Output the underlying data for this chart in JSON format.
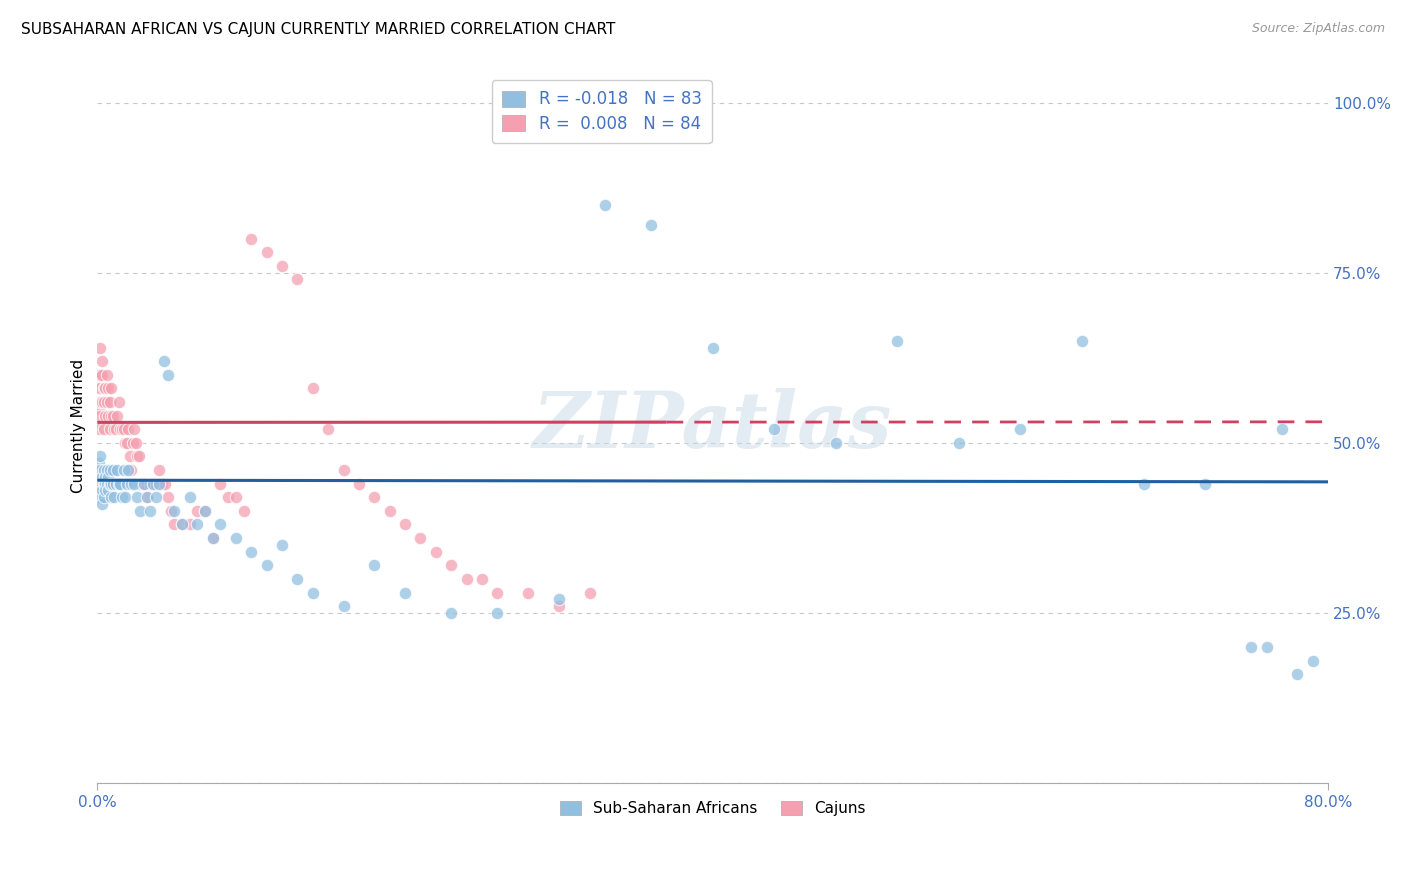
{
  "title": "SUBSAHARAN AFRICAN VS CAJUN CURRENTLY MARRIED CORRELATION CHART",
  "source": "Source: ZipAtlas.com",
  "ylabel": "Currently Married",
  "legend_label1": "Sub-Saharan Africans",
  "legend_label2": "Cajuns",
  "R_blue": -0.018,
  "N_blue": 83,
  "R_pink": 0.008,
  "N_pink": 84,
  "blue_color": "#92bfdf",
  "pink_color": "#f4a0b0",
  "blue_line_color": "#2060a0",
  "pink_line_color": "#d04060",
  "axis_label_color": "#4472c4",
  "watermark": "ZIPatlas",
  "blue_x": [
    0.001,
    0.001,
    0.001,
    0.002,
    0.002,
    0.002,
    0.002,
    0.003,
    0.003,
    0.003,
    0.004,
    0.004,
    0.004,
    0.005,
    0.005,
    0.005,
    0.006,
    0.006,
    0.007,
    0.007,
    0.008,
    0.008,
    0.009,
    0.009,
    0.01,
    0.01,
    0.011,
    0.012,
    0.013,
    0.014,
    0.015,
    0.016,
    0.017,
    0.018,
    0.019,
    0.02,
    0.022,
    0.024,
    0.026,
    0.028,
    0.03,
    0.032,
    0.034,
    0.036,
    0.038,
    0.04,
    0.043,
    0.046,
    0.05,
    0.055,
    0.06,
    0.065,
    0.07,
    0.075,
    0.08,
    0.09,
    0.1,
    0.11,
    0.12,
    0.13,
    0.14,
    0.16,
    0.18,
    0.2,
    0.23,
    0.26,
    0.3,
    0.33,
    0.36,
    0.4,
    0.44,
    0.48,
    0.52,
    0.56,
    0.6,
    0.64,
    0.68,
    0.72,
    0.75,
    0.76,
    0.77,
    0.78,
    0.79
  ],
  "blue_y": [
    0.45,
    0.43,
    0.47,
    0.44,
    0.46,
    0.42,
    0.48,
    0.43,
    0.45,
    0.41,
    0.44,
    0.46,
    0.42,
    0.44,
    0.43,
    0.45,
    0.44,
    0.46,
    0.43,
    0.45,
    0.44,
    0.46,
    0.44,
    0.42,
    0.46,
    0.44,
    0.42,
    0.44,
    0.46,
    0.44,
    0.44,
    0.42,
    0.46,
    0.42,
    0.44,
    0.46,
    0.44,
    0.44,
    0.42,
    0.4,
    0.44,
    0.42,
    0.4,
    0.44,
    0.42,
    0.44,
    0.62,
    0.6,
    0.4,
    0.38,
    0.42,
    0.38,
    0.4,
    0.36,
    0.38,
    0.36,
    0.34,
    0.32,
    0.35,
    0.3,
    0.28,
    0.26,
    0.32,
    0.28,
    0.25,
    0.25,
    0.27,
    0.85,
    0.82,
    0.64,
    0.52,
    0.5,
    0.65,
    0.5,
    0.52,
    0.65,
    0.44,
    0.44,
    0.2,
    0.2,
    0.52,
    0.16,
    0.18
  ],
  "pink_x": [
    0.001,
    0.001,
    0.001,
    0.001,
    0.002,
    0.002,
    0.002,
    0.002,
    0.002,
    0.003,
    0.003,
    0.003,
    0.004,
    0.004,
    0.004,
    0.005,
    0.005,
    0.006,
    0.006,
    0.007,
    0.007,
    0.008,
    0.008,
    0.009,
    0.009,
    0.01,
    0.011,
    0.012,
    0.013,
    0.014,
    0.015,
    0.016,
    0.017,
    0.018,
    0.019,
    0.02,
    0.021,
    0.022,
    0.023,
    0.024,
    0.025,
    0.026,
    0.027,
    0.028,
    0.03,
    0.032,
    0.034,
    0.036,
    0.038,
    0.04,
    0.042,
    0.044,
    0.046,
    0.048,
    0.05,
    0.055,
    0.06,
    0.065,
    0.07,
    0.075,
    0.08,
    0.085,
    0.09,
    0.095,
    0.1,
    0.11,
    0.12,
    0.13,
    0.14,
    0.15,
    0.16,
    0.17,
    0.18,
    0.19,
    0.2,
    0.21,
    0.22,
    0.23,
    0.24,
    0.25,
    0.26,
    0.28,
    0.3,
    0.32
  ],
  "pink_y": [
    0.55,
    0.58,
    0.52,
    0.6,
    0.56,
    0.58,
    0.54,
    0.6,
    0.64,
    0.6,
    0.62,
    0.56,
    0.56,
    0.58,
    0.52,
    0.58,
    0.54,
    0.6,
    0.56,
    0.58,
    0.54,
    0.56,
    0.52,
    0.54,
    0.58,
    0.54,
    0.52,
    0.52,
    0.54,
    0.56,
    0.52,
    0.52,
    0.52,
    0.5,
    0.5,
    0.52,
    0.48,
    0.46,
    0.5,
    0.52,
    0.5,
    0.48,
    0.48,
    0.44,
    0.44,
    0.42,
    0.44,
    0.44,
    0.44,
    0.46,
    0.44,
    0.44,
    0.42,
    0.4,
    0.38,
    0.38,
    0.38,
    0.4,
    0.4,
    0.36,
    0.44,
    0.42,
    0.42,
    0.4,
    0.8,
    0.78,
    0.76,
    0.74,
    0.58,
    0.52,
    0.46,
    0.44,
    0.42,
    0.4,
    0.38,
    0.36,
    0.34,
    0.32,
    0.3,
    0.3,
    0.28,
    0.28,
    0.26,
    0.28
  ],
  "xlim": [
    0.0,
    0.8
  ],
  "ylim": [
    0.0,
    1.05
  ],
  "yticks": [
    0.0,
    0.25,
    0.5,
    0.75,
    1.0
  ],
  "ytick_labels": [
    "",
    "25.0%",
    "50.0%",
    "75.0%",
    "100.0%"
  ],
  "xtick_labels": [
    "0.0%",
    "80.0%"
  ],
  "grid_color": "#c8c8c8",
  "background_color": "#ffffff",
  "title_fontsize": 11,
  "source_fontsize": 9,
  "label_fontsize": 11,
  "blue_intercept": 0.445,
  "blue_slope": -0.003,
  "pink_intercept": 0.53,
  "pink_slope": 0.001
}
